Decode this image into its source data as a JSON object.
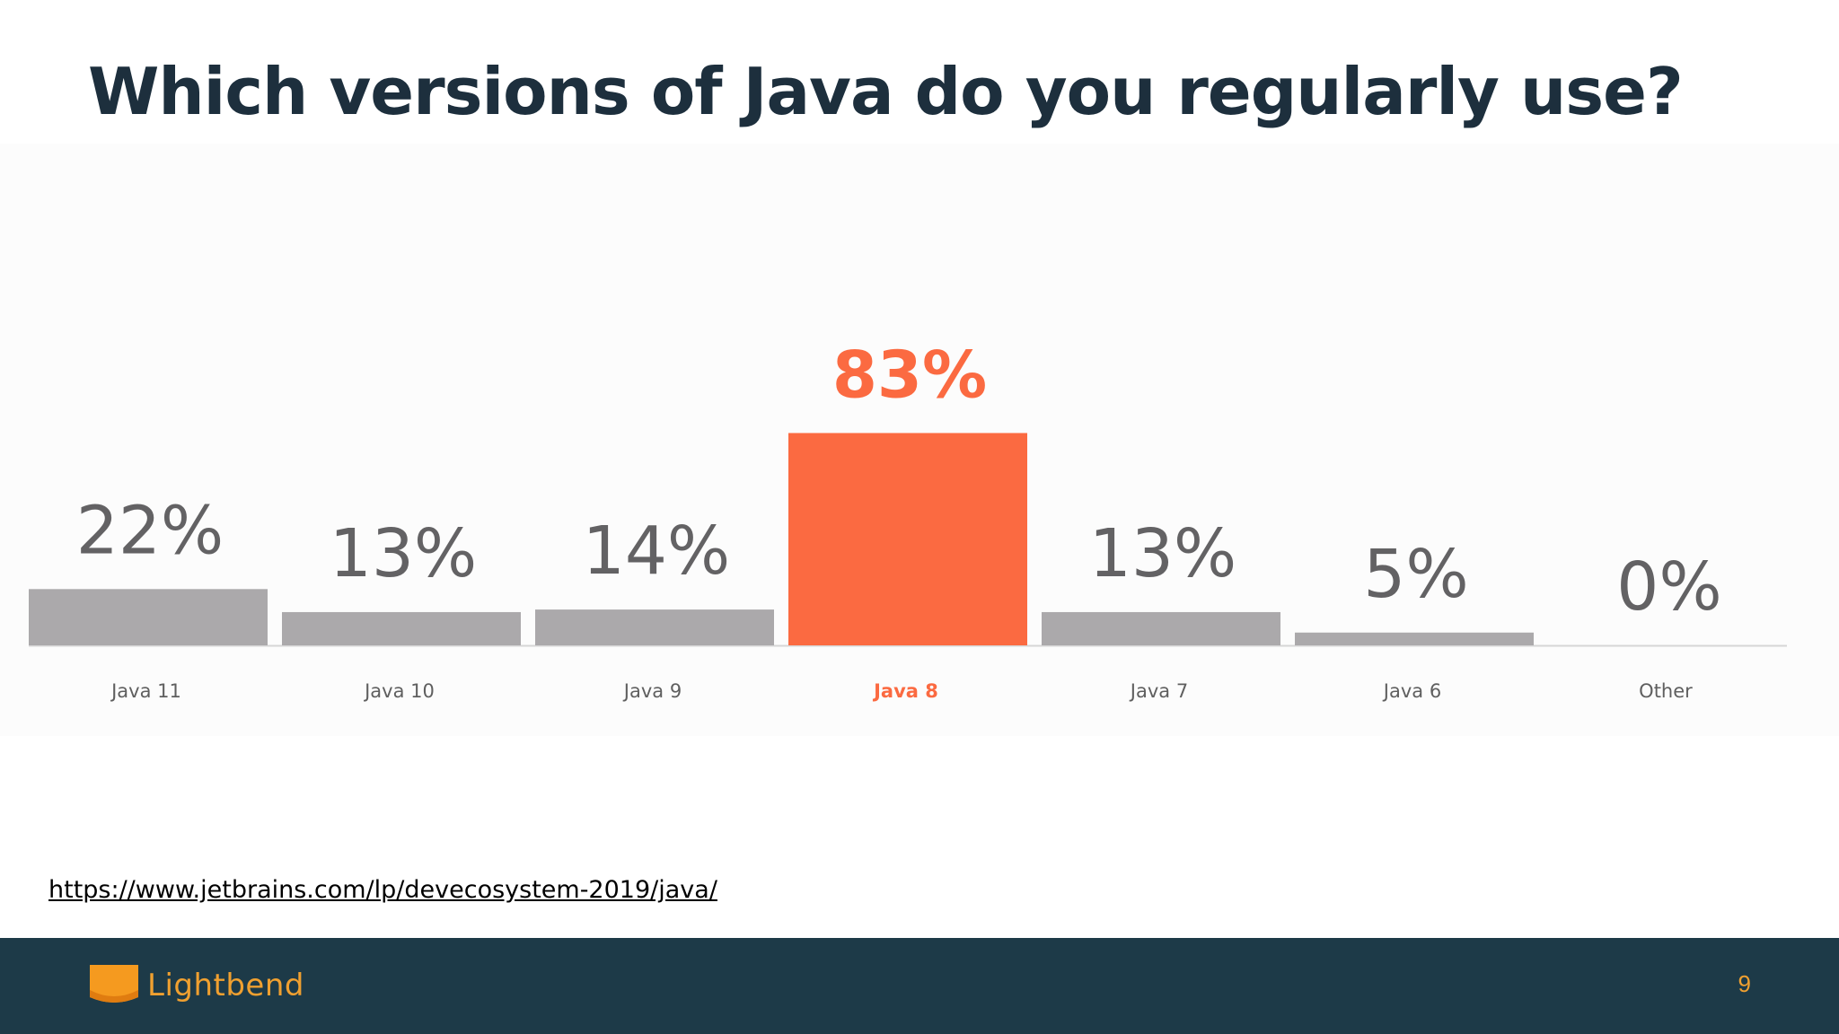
{
  "slide": {
    "title": "Which versions of Java do you regularly use?",
    "source_url": "https://www.jetbrains.com/lp/devecosystem-2019/java/",
    "page_number": "9"
  },
  "footer": {
    "brand": "Lightbend",
    "logo_icon": "lightbend-logo-icon"
  },
  "colors": {
    "highlight": "#fb6a41",
    "bar": "#aba9ab",
    "value_label": "#636264",
    "category_label": "#5f5f5f",
    "title": "#1d2f3d",
    "footer_bg": "#1d3a48",
    "brand": "#f0a030"
  },
  "chart_data": {
    "type": "bar",
    "title": "Which versions of Java do you regularly use?",
    "xlabel": "",
    "ylabel": "",
    "ylim": [
      0,
      100
    ],
    "grid": false,
    "legend": "none",
    "highlight_category": "Java 8",
    "categories": [
      "Java 11",
      "Java 10",
      "Java 9",
      "Java 8",
      "Java 7",
      "Java 6",
      "Other"
    ],
    "values": [
      22,
      13,
      14,
      83,
      13,
      5,
      0
    ],
    "data_labels": [
      "22%",
      "13%",
      "14%",
      "83%",
      "13%",
      "5%",
      "0%"
    ]
  }
}
